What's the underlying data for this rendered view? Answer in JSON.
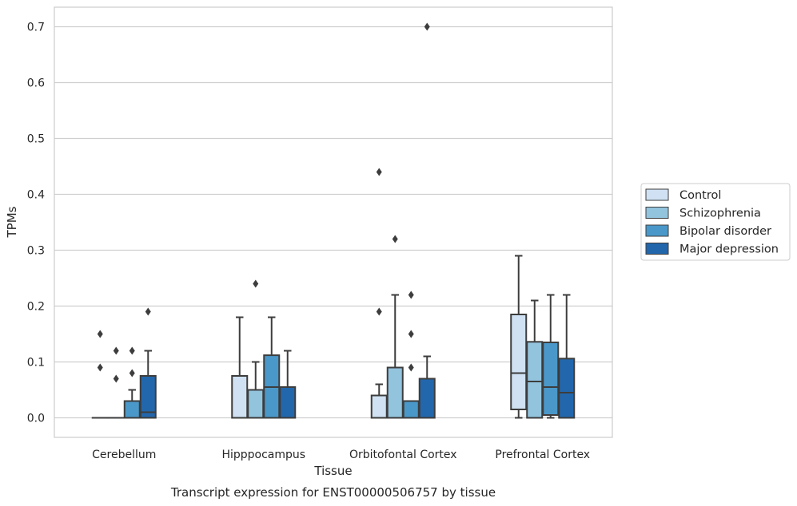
{
  "chart_data": {
    "type": "box",
    "title": "",
    "caption": "Transcript expression for ENST00000506757 by tissue",
    "xlabel": "Tissue",
    "ylabel": "TPMs",
    "ylim": [
      -0.035,
      0.735
    ],
    "yticks": [
      0.0,
      0.1,
      0.2,
      0.3,
      0.4,
      0.5,
      0.6,
      0.7
    ],
    "grid": "horizontal",
    "legend_position": "right",
    "categories": [
      "Cerebellum",
      "Hipppocampus",
      "Orbitofontal Cortex",
      "Prefrontal Cortex"
    ],
    "series": [
      {
        "name": "Control",
        "color": "#cfe1f2",
        "boxes": [
          {
            "q1": 0.0,
            "median": 0.0,
            "q3": 0.0,
            "whisker_low": 0.0,
            "whisker_high": 0.0,
            "outliers": [
              0.09,
              0.15
            ]
          },
          {
            "q1": 0.0,
            "median": 0.0,
            "q3": 0.075,
            "whisker_low": 0.0,
            "whisker_high": 0.18,
            "outliers": []
          },
          {
            "q1": 0.0,
            "median": 0.0,
            "q3": 0.04,
            "whisker_low": 0.0,
            "whisker_high": 0.06,
            "outliers": [
              0.19,
              0.44
            ]
          },
          {
            "q1": 0.015,
            "median": 0.08,
            "q3": 0.185,
            "whisker_low": 0.0,
            "whisker_high": 0.29,
            "outliers": []
          }
        ]
      },
      {
        "name": "Schizophrenia",
        "color": "#93c4de",
        "boxes": [
          {
            "q1": 0.0,
            "median": 0.0,
            "q3": 0.0,
            "whisker_low": 0.0,
            "whisker_high": 0.0,
            "outliers": [
              0.07,
              0.12
            ]
          },
          {
            "q1": 0.0,
            "median": 0.0,
            "q3": 0.05,
            "whisker_low": 0.0,
            "whisker_high": 0.1,
            "outliers": [
              0.24
            ]
          },
          {
            "q1": 0.0,
            "median": 0.0,
            "q3": 0.09,
            "whisker_low": 0.0,
            "whisker_high": 0.22,
            "outliers": [
              0.32
            ]
          },
          {
            "q1": 0.0,
            "median": 0.065,
            "q3": 0.136,
            "whisker_low": 0.0,
            "whisker_high": 0.21,
            "outliers": []
          }
        ]
      },
      {
        "name": "Bipolar disorder",
        "color": "#4a98c9",
        "boxes": [
          {
            "q1": 0.0,
            "median": 0.0,
            "q3": 0.03,
            "whisker_low": 0.0,
            "whisker_high": 0.05,
            "outliers": [
              0.08,
              0.12
            ]
          },
          {
            "q1": 0.0,
            "median": 0.055,
            "q3": 0.112,
            "whisker_low": 0.0,
            "whisker_high": 0.18,
            "outliers": []
          },
          {
            "q1": 0.0,
            "median": 0.0,
            "q3": 0.03,
            "whisker_low": 0.0,
            "whisker_high": 0.03,
            "outliers": [
              0.09,
              0.15,
              0.22
            ]
          },
          {
            "q1": 0.005,
            "median": 0.055,
            "q3": 0.135,
            "whisker_low": 0.0,
            "whisker_high": 0.22,
            "outliers": []
          }
        ]
      },
      {
        "name": "Major depression",
        "color": "#2267ac",
        "boxes": [
          {
            "q1": 0.0,
            "median": 0.01,
            "q3": 0.075,
            "whisker_low": 0.0,
            "whisker_high": 0.12,
            "outliers": [
              0.19
            ]
          },
          {
            "q1": 0.0,
            "median": 0.0,
            "q3": 0.055,
            "whisker_low": 0.0,
            "whisker_high": 0.12,
            "outliers": []
          },
          {
            "q1": 0.0,
            "median": 0.0,
            "q3": 0.07,
            "whisker_low": 0.0,
            "whisker_high": 0.11,
            "outliers": [
              0.7
            ]
          },
          {
            "q1": 0.0,
            "median": 0.045,
            "q3": 0.106,
            "whisker_low": 0.0,
            "whisker_high": 0.22,
            "outliers": []
          }
        ]
      }
    ]
  }
}
